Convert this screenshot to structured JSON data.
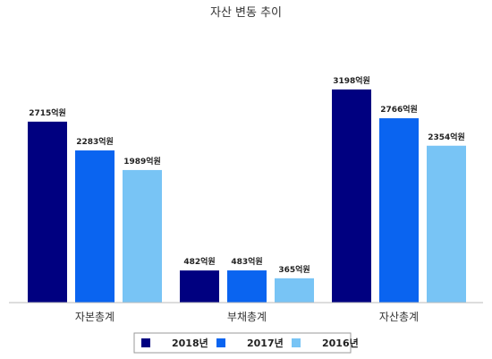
{
  "chart_data": {
    "type": "bar",
    "title": "자산 변동 추이",
    "categories": [
      "자본총계",
      "부채총계",
      "자산총계"
    ],
    "series": [
      {
        "name": "2018년",
        "color": "#000080",
        "values": [
          2715,
          482,
          3198
        ],
        "labels": [
          "2715억원",
          "482억원",
          "3198억원"
        ]
      },
      {
        "name": "2017년",
        "color": "#0a64f0",
        "values": [
          2283,
          483,
          2766
        ],
        "labels": [
          "2283억원",
          "483억원",
          "2766억원"
        ]
      },
      {
        "name": "2016년",
        "color": "#78c4f5",
        "values": [
          1989,
          365,
          2354
        ],
        "labels": [
          "1989억원",
          "365억원",
          "2354억원"
        ]
      }
    ],
    "ylim": [
      0,
      3600
    ],
    "grid": false,
    "legend_position": "bottom"
  }
}
